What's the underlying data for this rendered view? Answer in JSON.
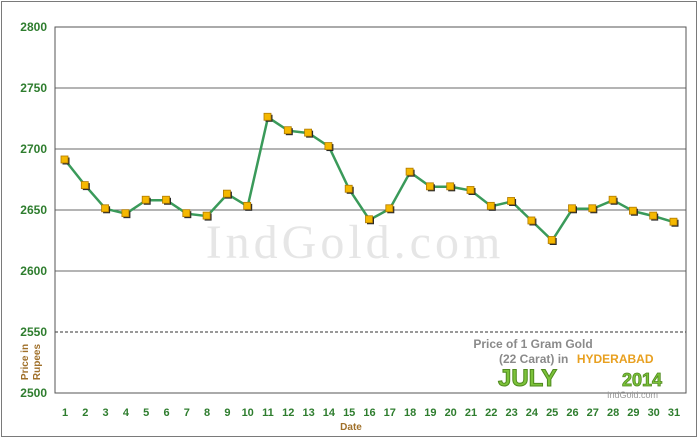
{
  "chart_data": {
    "type": "line",
    "xlabel": "Date",
    "ylabel": "Price in Rupees",
    "ylim": [
      2500,
      2800
    ],
    "yticks": [
      2500,
      2550,
      2600,
      2650,
      2700,
      2750,
      2800
    ],
    "grid": true,
    "series": [
      {
        "x": [
          1,
          2,
          3,
          4,
          5,
          6,
          7,
          8,
          9,
          10,
          11,
          12,
          13,
          14,
          15,
          16,
          17,
          18,
          19,
          20,
          21,
          22,
          23,
          24,
          25,
          26,
          27,
          28,
          29,
          30,
          31
        ],
        "values": [
          2691,
          2670,
          2651,
          2647,
          2658,
          2658,
          2647,
          2645,
          2663,
          2653,
          2726,
          2715,
          2713,
          2702,
          2667,
          2642,
          2651,
          2681,
          2669,
          2669,
          2666,
          2653,
          2657,
          2641,
          2625,
          2651,
          2651,
          2658,
          2649,
          2645,
          2640
        ]
      }
    ],
    "line_color": "#3a9a5a",
    "marker_color": "#f5b800",
    "watermark": "IndGold.com",
    "caption": {
      "line1": "Price of 1 Gram Gold",
      "line2_prefix": "(22 Carat) in",
      "city": "HYDERABAD",
      "month": "JULY",
      "year": "2014",
      "credit": "IndGold.com"
    }
  }
}
